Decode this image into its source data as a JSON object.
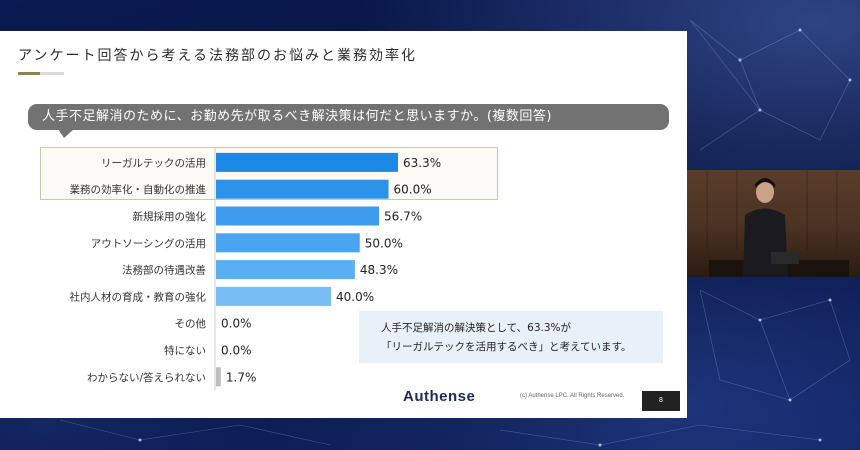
{
  "slide": {
    "title": "アンケート回答から考える法務部のお悩みと業務効率化",
    "question": "人手不足解消のために、お勤め先が取るべき解決策は何だと思いますか。(複数回答)",
    "callout_line1": "人手不足解消の解決策として、63.3%が",
    "callout_line2": "「リーガルテックを活用するべき」と考えています。",
    "logo": "Authense",
    "copyright": "(c) Authense LPC. All Rights Reserved.",
    "page_number": "8"
  },
  "chart_data": {
    "type": "bar",
    "orientation": "horizontal",
    "categories": [
      "リーガルテックの活用",
      "業務の効率化・自動化の推進",
      "新規採用の強化",
      "アウトソーシングの活用",
      "法務部の待遇改善",
      "社内人材の育成・教育の強化",
      "その他",
      "特にない",
      "わからない/答えられない"
    ],
    "values": [
      63.3,
      60.0,
      56.7,
      50.0,
      48.3,
      40.0,
      0.0,
      0.0,
      1.7
    ],
    "labels": [
      "63.3%",
      "60.0%",
      "56.7%",
      "50.0%",
      "48.3%",
      "40.0%",
      "0.0%",
      "0.0%",
      "1.7%"
    ],
    "colors": [
      "#1e88e5",
      "#2b92ea",
      "#3d9ced",
      "#4aa4ef",
      "#5aaef2",
      "#77bdf5",
      "#bbbbbb",
      "#bbbbbb",
      "#bdbdbd"
    ],
    "highlighted": [
      0,
      1
    ],
    "xlim": [
      0,
      100
    ]
  }
}
